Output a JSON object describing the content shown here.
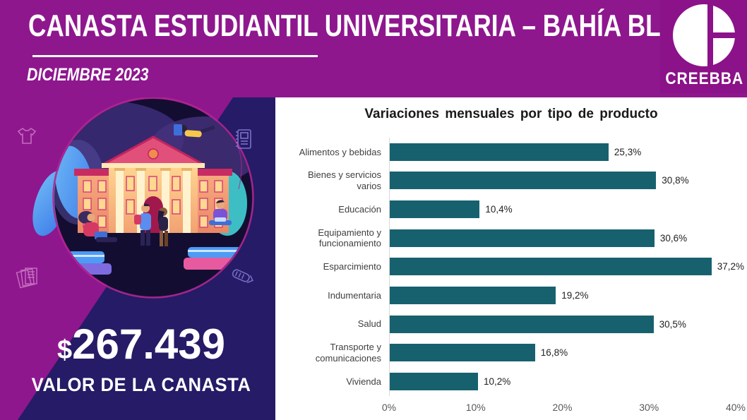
{
  "header": {
    "title": "CANASTA ESTUDIANTIL UNIVERSITARIA – BAHÍA BLANCA",
    "subtitle": "DICIEMBRE 2023",
    "logo_text": "CREEBBA"
  },
  "left_panel": {
    "value_prefix": "$",
    "value_number": "267.439",
    "caption": "VALOR DE LA CANASTA",
    "decorative_icons": [
      "tshirt-icon",
      "notebook-icon",
      "papers-icon",
      "pencil-icon"
    ],
    "illustration": "university-building-with-students"
  },
  "colors": {
    "magenta": "#8E178E",
    "navy": "#251B66",
    "circle_bg": "#130E31",
    "ring": "#B1268E",
    "bar_teal": "#17616F",
    "axis_gray": "#D9D9D9"
  },
  "chart_data": {
    "type": "bar",
    "orientation": "horizontal",
    "title": "Variaciones mensuales por tipo de producto",
    "categories": [
      "Alimentos y bebidas",
      "Bienes y servicios varios",
      "Educación",
      "Equipamiento y funcionamiento",
      "Esparcimiento",
      "Indumentaria",
      "Salud",
      "Transporte y comunicaciones",
      "Vivienda"
    ],
    "values": [
      25.3,
      30.8,
      10.4,
      30.6,
      37.2,
      19.2,
      30.5,
      16.8,
      10.2
    ],
    "value_labels": [
      "25,3%",
      "30,8%",
      "10,4%",
      "30,6%",
      "37,2%",
      "19,2%",
      "30,5%",
      "16,8%",
      "10,2%"
    ],
    "xlim": [
      0,
      40
    ],
    "x_ticks": [
      0,
      10,
      20,
      30,
      40
    ],
    "x_tick_labels": [
      "0%",
      "10%",
      "20%",
      "30%",
      "40%"
    ],
    "grid": false,
    "legend": false,
    "bar_color": "#17616F"
  }
}
